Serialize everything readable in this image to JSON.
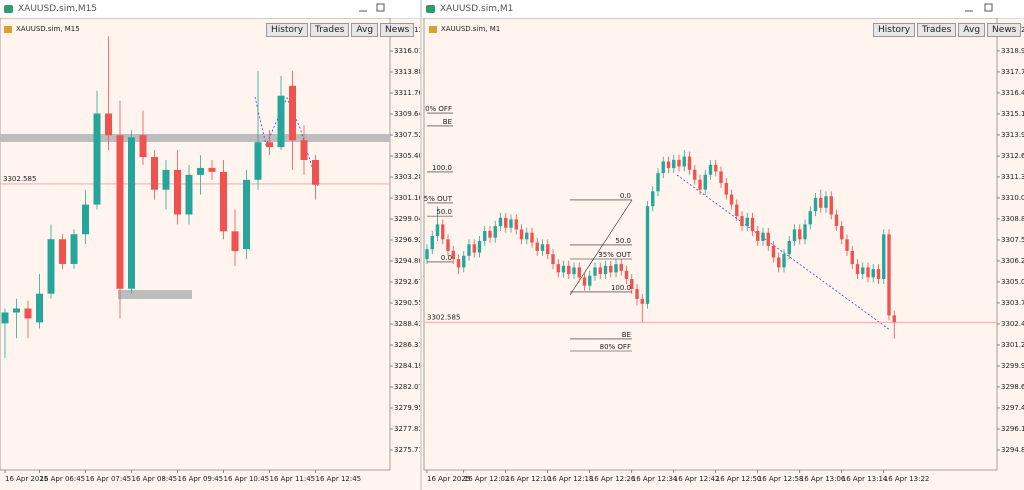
{
  "windows": [
    {
      "title": "XAUUSD.sim,M15",
      "chart_data": {
        "type": "candlestick",
        "label": "XAUUSD.sim, M15",
        "buttons": [
          "History",
          "Trades",
          "Avg",
          "News"
        ],
        "categories": [
          "16 Apr 2025",
          null,
          null,
          "16 Apr 06:45",
          null,
          null,
          null,
          "16 Apr 07:45",
          null,
          null,
          null,
          "16 Apr 08:45",
          null,
          null,
          null,
          "16 Apr 09:45",
          null,
          null,
          null,
          "16 Apr 10:45",
          null,
          null,
          null,
          "16 Apr 11:45",
          null,
          null,
          null,
          "16 Apr 12:45"
        ],
        "open": [
          3288.5,
          3289.6,
          3290.0,
          3288.6,
          3291.5,
          3297.0,
          3294.5,
          3297.5,
          3300.5,
          3309.7,
          3307.5,
          3292.0,
          3307.5,
          3305.3,
          3302.0,
          3304.0,
          3299.5,
          3303.5,
          3304.2,
          3303.8,
          3297.8,
          3296.0,
          3303.0,
          3306.8,
          3306.3,
          3312.5,
          3307.0,
          3305.0
        ],
        "high": [
          3290.0,
          3291.0,
          3290.8,
          3293.5,
          3298.5,
          3297.5,
          3298.0,
          3302.0,
          3312.0,
          3317.5,
          3311.0,
          3308.0,
          3310.0,
          3306.0,
          3305.0,
          3306.0,
          3304.5,
          3305.5,
          3305.0,
          3305.0,
          3300.0,
          3304.0,
          3314.0,
          3308.0,
          3313.5,
          3314.0,
          3308.5,
          3305.5
        ],
        "low": [
          3285.0,
          3287.0,
          3287.0,
          3288.0,
          3291.0,
          3294.0,
          3294.0,
          3296.5,
          3300.0,
          3306.0,
          3289.0,
          3291.5,
          3304.5,
          3301.0,
          3300.0,
          3298.5,
          3298.5,
          3301.5,
          3303.0,
          3297.0,
          3294.3,
          3295.0,
          3302.0,
          3305.5,
          3306.0,
          3304.0,
          3303.5,
          3301.0
        ],
        "close": [
          3289.6,
          3290.0,
          3289.0,
          3291.5,
          3297.0,
          3294.5,
          3297.5,
          3300.5,
          3309.7,
          3307.5,
          3292.0,
          3307.3,
          3305.3,
          3302.0,
          3304.0,
          3299.5,
          3303.5,
          3304.2,
          3303.8,
          3297.8,
          3295.8,
          3303.0,
          3306.8,
          3306.3,
          3311.5,
          3307.0,
          3305.0,
          3302.5
        ],
        "up_color": "#26a69a",
        "down_color": "#ef5350",
        "ylim": [
          3273.69,
          3318.94
        ],
        "yticks": [
          3318.131,
          {
            "value": 3316.01,
            "label": "3316.010"
          },
          3313.889,
          3311.768,
          3309.647,
          3307.526,
          3305.405,
          3303.284,
          3301.163,
          3299.042,
          3296.921,
          {
            "value": 3294.8,
            "label": "3294.800"
          },
          3292.679,
          3290.558,
          3288.437,
          3286.316,
          3284.195,
          3282.074,
          3279.953,
          3277.832,
          3275.711
        ],
        "price_line": 3302.585,
        "price_line_color": "#f3a09c",
        "annotations": []
      }
    },
    {
      "title": "XAUUSD.sim,M1",
      "chart_data": {
        "type": "candlestick",
        "label": "XAUUSD.sim, M1",
        "buttons": [
          "History",
          "Trades",
          "Avg",
          "News"
        ],
        "categories": [
          "16 Apr 2025",
          null,
          null,
          null,
          null,
          null,
          null,
          "16 Apr 12:02",
          null,
          null,
          null,
          null,
          null,
          null,
          null,
          "16 Apr 12:10",
          null,
          null,
          null,
          null,
          null,
          null,
          null,
          "16 Apr 12:18",
          null,
          null,
          null,
          null,
          null,
          null,
          null,
          "16 Apr 12:26",
          null,
          null,
          null,
          null,
          null,
          null,
          null,
          "16 Apr 12:34",
          null,
          null,
          null,
          null,
          null,
          null,
          null,
          "16 Apr 12:42",
          null,
          null,
          null,
          null,
          null,
          null,
          null,
          "16 Apr 12:50",
          null,
          null,
          null,
          null,
          null,
          null,
          null,
          "16 Apr 12:58",
          null,
          null,
          null,
          null,
          null,
          null,
          null,
          "16 Apr 13:06",
          null,
          null,
          null,
          null,
          null,
          null,
          null,
          "16 Apr 13:14",
          null,
          null,
          null,
          null,
          null,
          null,
          null,
          "16 Apr 13:22",
          null,
          null
        ],
        "open": [
          3306.4,
          3307.0,
          3307.8,
          3308.5,
          3307.6,
          3306.9,
          3306.4,
          3305.9,
          3306.6,
          3307.3,
          3306.8,
          3307.5,
          3308.1,
          3307.7,
          3308.4,
          3308.9,
          3308.3,
          3308.8,
          3308.2,
          3307.6,
          3308.0,
          3307.4,
          3306.9,
          3307.3,
          3306.7,
          3306.1,
          3305.6,
          3306.0,
          3305.5,
          3305.9,
          3305.3,
          3304.8,
          3305.4,
          3305.9,
          3305.5,
          3306.0,
          3305.6,
          3306.1,
          3305.7,
          3305.2,
          3304.6,
          3304.0,
          3303.7,
          3309.6,
          3310.5,
          3311.6,
          3312.3,
          3311.9,
          3312.4,
          3312.0,
          3312.6,
          3311.8,
          3311.2,
          3310.6,
          3311.5,
          3312.1,
          3311.7,
          3311.0,
          3310.3,
          3309.7,
          3309.0,
          3308.4,
          3308.9,
          3308.1,
          3307.5,
          3308.0,
          3307.2,
          3306.5,
          3305.9,
          3306.7,
          3307.5,
          3308.2,
          3307.6,
          3308.5,
          3309.3,
          3310.1,
          3309.5,
          3310.2,
          3309.1,
          3308.4,
          3307.6,
          3306.9,
          3306.1,
          3305.5,
          3305.9,
          3305.3,
          3305.8,
          3305.2,
          3307.9,
          3303.0
        ],
        "high": [
          3307.3,
          3308.1,
          3309.6,
          3308.8,
          3307.9,
          3307.2,
          3306.7,
          3306.9,
          3307.6,
          3307.6,
          3307.8,
          3308.4,
          3308.4,
          3308.7,
          3309.2,
          3309.2,
          3309.1,
          3309.1,
          3308.5,
          3308.3,
          3308.3,
          3307.7,
          3307.6,
          3307.6,
          3307.0,
          3306.4,
          3306.3,
          3306.3,
          3306.2,
          3306.2,
          3305.6,
          3305.7,
          3306.2,
          3306.2,
          3306.3,
          3306.3,
          3306.4,
          3306.4,
          3306.0,
          3305.5,
          3304.9,
          3304.3,
          3309.9,
          3310.8,
          3311.9,
          3312.6,
          3312.6,
          3312.7,
          3312.7,
          3313.0,
          3312.9,
          3312.1,
          3311.5,
          3311.8,
          3312.4,
          3312.4,
          3312.0,
          3311.3,
          3310.6,
          3310.0,
          3309.3,
          3309.2,
          3309.2,
          3308.4,
          3308.3,
          3308.3,
          3307.5,
          3306.8,
          3307.0,
          3307.8,
          3308.5,
          3308.5,
          3308.8,
          3309.6,
          3310.4,
          3310.6,
          3310.5,
          3310.5,
          3309.4,
          3308.7,
          3307.9,
          3307.2,
          3306.4,
          3306.2,
          3306.2,
          3306.1,
          3306.1,
          3308.2,
          3308.2,
          3303.3
        ],
        "low": [
          3306.1,
          3306.7,
          3307.5,
          3307.3,
          3306.6,
          3306.1,
          3305.5,
          3305.6,
          3306.3,
          3306.5,
          3306.5,
          3307.2,
          3307.4,
          3307.4,
          3308.1,
          3308.0,
          3308.0,
          3307.9,
          3307.3,
          3307.3,
          3307.1,
          3306.6,
          3306.6,
          3306.4,
          3305.8,
          3305.3,
          3305.3,
          3305.2,
          3305.2,
          3305.0,
          3304.5,
          3304.5,
          3305.1,
          3305.2,
          3305.2,
          3305.3,
          3305.3,
          3305.4,
          3304.9,
          3304.3,
          3303.6,
          3302.6,
          3303.4,
          3309.3,
          3310.2,
          3311.3,
          3311.6,
          3311.6,
          3311.7,
          3311.7,
          3311.5,
          3310.9,
          3310.3,
          3310.3,
          3311.2,
          3311.4,
          3310.7,
          3310.0,
          3309.4,
          3308.7,
          3308.1,
          3308.1,
          3307.8,
          3307.2,
          3307.2,
          3306.9,
          3306.2,
          3305.6,
          3305.6,
          3306.4,
          3307.2,
          3307.3,
          3307.3,
          3308.2,
          3309.0,
          3309.2,
          3309.2,
          3308.8,
          3308.1,
          3307.3,
          3306.6,
          3305.8,
          3305.2,
          3305.2,
          3305.0,
          3305.0,
          3304.9,
          3304.9,
          3302.7,
          3301.6
        ],
        "close": [
          3307.0,
          3307.8,
          3308.5,
          3307.6,
          3306.9,
          3306.4,
          3305.9,
          3306.6,
          3307.3,
          3306.8,
          3307.5,
          3308.1,
          3307.7,
          3308.4,
          3308.9,
          3308.3,
          3308.8,
          3308.2,
          3307.6,
          3308.0,
          3307.4,
          3306.9,
          3307.3,
          3306.7,
          3306.1,
          3305.6,
          3306.0,
          3305.5,
          3305.9,
          3305.3,
          3304.8,
          3305.4,
          3305.9,
          3305.5,
          3306.0,
          3305.6,
          3306.1,
          3305.7,
          3305.2,
          3304.6,
          3304.0,
          3303.7,
          3309.6,
          3310.5,
          3311.6,
          3312.3,
          3311.9,
          3312.4,
          3312.0,
          3312.6,
          3311.8,
          3311.2,
          3310.6,
          3311.5,
          3312.1,
          3311.7,
          3311.0,
          3310.3,
          3309.7,
          3309.0,
          3308.4,
          3308.9,
          3308.1,
          3307.5,
          3308.0,
          3307.2,
          3306.5,
          3305.9,
          3306.7,
          3307.5,
          3308.2,
          3307.6,
          3308.5,
          3309.3,
          3310.1,
          3309.5,
          3310.2,
          3309.1,
          3308.4,
          3307.6,
          3306.9,
          3306.1,
          3305.5,
          3305.9,
          3305.3,
          3305.8,
          3305.2,
          3307.9,
          3303.0,
          3302.6
        ],
        "up_color": "#26a69a",
        "down_color": "#ef5350",
        "ylim": [
          3293.66,
          3320.73
        ],
        "yticks": [
          {
            "value": 3320.25,
            "label": "3320.250"
          },
          3318.981,
          3317.712,
          3316.443,
          3315.174,
          3313.905,
          {
            "value": 3312.63,
            "label": "3312.630"
          },
          3311.367,
          3310.098,
          3308.829,
          {
            "value": 3307.56,
            "label": "3307.560"
          },
          3306.291,
          3305.022,
          3303.753,
          3302.484,
          3301.215,
          3299.946,
          3298.677,
          3297.408,
          3296.139,
          {
            "value": 3294.87,
            "label": "3294.870"
          }
        ],
        "price_line": 3302.585,
        "price_line_color": "#f3a09c",
        "annotations": [
          {
            "label": "0% OFF",
            "value": 3315.23
          },
          {
            "label": "BE",
            "value": 3314.45
          },
          {
            "label": "100.0",
            "value": 3311.67
          },
          {
            "label": "5% OUT",
            "value": 3309.8
          },
          {
            "label": "50.0",
            "value": 3309.0
          },
          {
            "label": "0.0",
            "value": 3306.23
          },
          {
            "label": "0.0",
            "value": 3309.98
          },
          {
            "label": "50.0",
            "value": 3307.26
          },
          {
            "label": "35% OUT",
            "value": 3306.41
          },
          {
            "label": "100.0",
            "value": 3304.42
          },
          {
            "label": "BE",
            "value": 3301.58
          },
          {
            "label": "80% OFF",
            "value": 3300.85
          }
        ]
      }
    }
  ]
}
